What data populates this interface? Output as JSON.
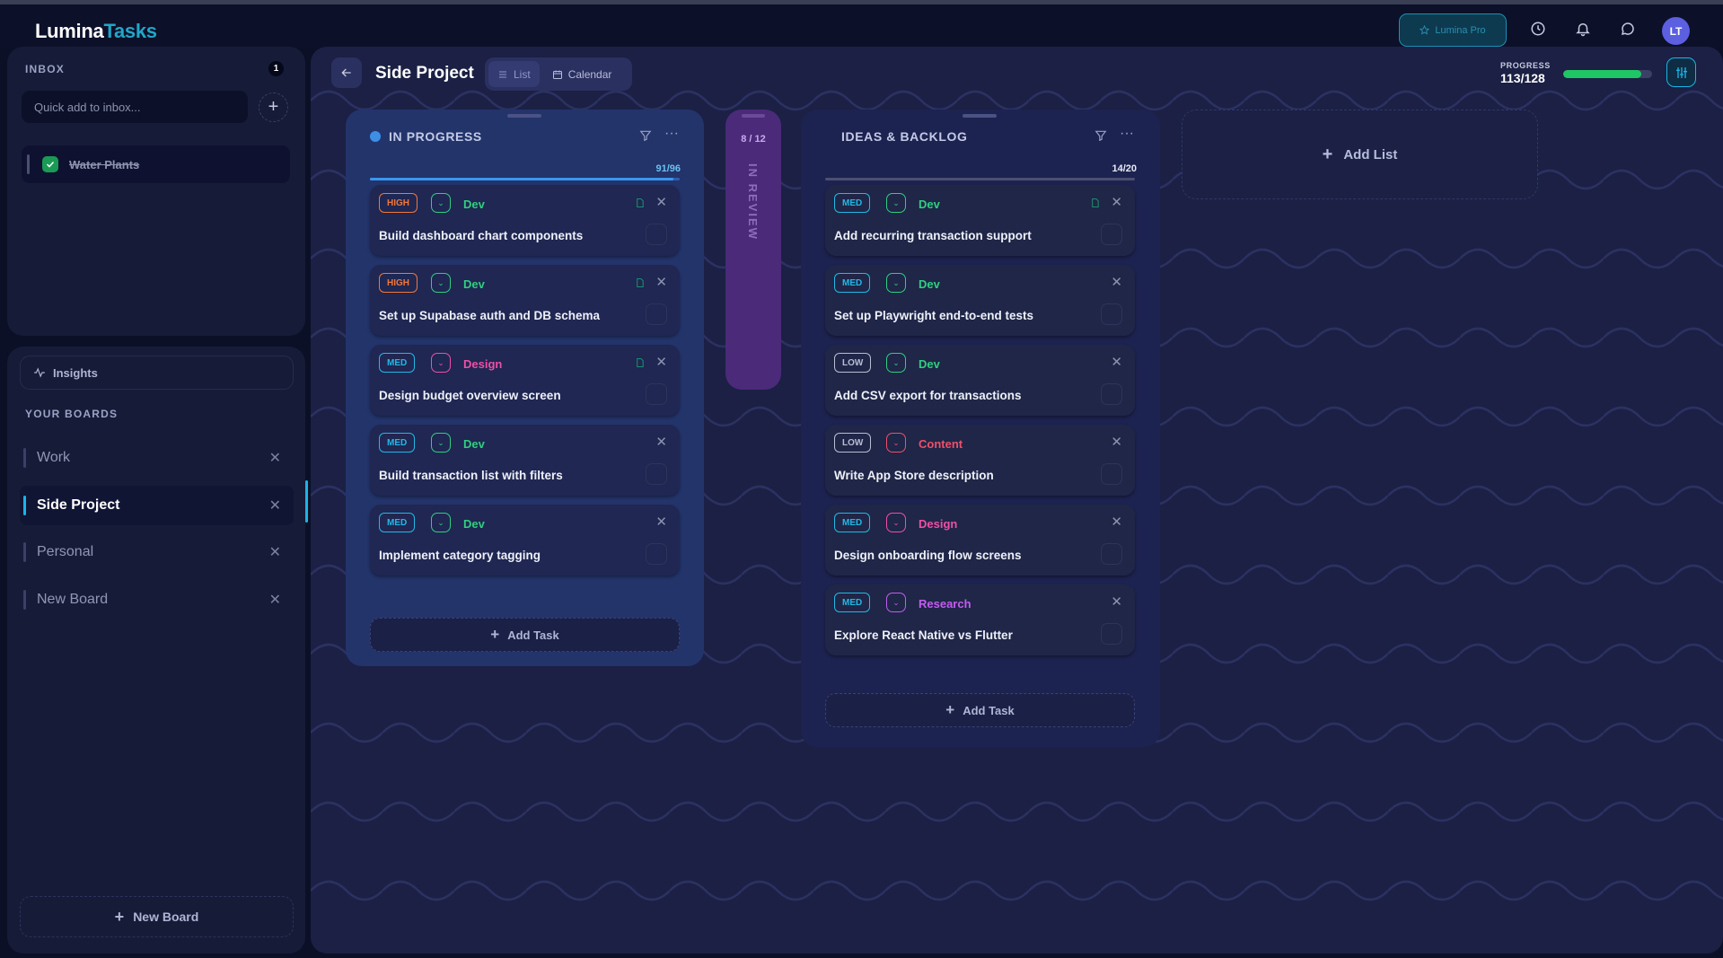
{
  "app": {
    "logo_a": "Lumina",
    "logo_b": "Tasks",
    "pro_label": "Lumina Pro",
    "avatar": "LT"
  },
  "inbox": {
    "title": "INBOX",
    "count": "1",
    "placeholder": "Quick add to inbox...",
    "items": [
      {
        "label": "Water Plants",
        "done": true
      }
    ]
  },
  "sidebar": {
    "insights": "Insights",
    "boards_title": "YOUR BOARDS",
    "boards": [
      {
        "label": "Work"
      },
      {
        "label": "Side Project",
        "active": true
      },
      {
        "label": "Personal"
      },
      {
        "label": "New Board"
      }
    ],
    "new_board": "New Board"
  },
  "board": {
    "title": "Side Project",
    "tabs": [
      "List",
      "Calendar"
    ],
    "progress_label": "PROGRESS",
    "progress_value": "113/128",
    "progress_fraction": 0.883
  },
  "colors": {
    "accent": "#19b5e6",
    "high": "#f0773a",
    "med": "#22b8e6",
    "low": "#b9bed3",
    "dev": "#2fcf7f",
    "design": "#ef4fa6",
    "content": "#ef4f6a",
    "research": "#c45cf0",
    "progress": "#1fc664"
  },
  "columns": {
    "in_progress": {
      "title": "IN PROGRESS",
      "count": "91/96",
      "cards": [
        {
          "priority": "HIGH",
          "category": "Dev",
          "title": "Build dashboard chart components"
        },
        {
          "priority": "HIGH",
          "category": "Dev",
          "title": "Set up Supabase auth and DB schema"
        },
        {
          "priority": "MED",
          "category": "Design",
          "title": "Design budget overview screen"
        },
        {
          "priority": "MED",
          "category": "Dev",
          "title": "Build transaction list with filters"
        },
        {
          "priority": "MED",
          "category": "Dev",
          "title": "Implement category tagging"
        }
      ],
      "add_task": "Add Task"
    },
    "in_review": {
      "title": "IN REVIEW",
      "count": "8 / 12"
    },
    "ideas": {
      "title": "IDEAS & BACKLOG",
      "count": "14/20",
      "cards": [
        {
          "priority": "MED",
          "category": "Dev",
          "title": "Add recurring transaction support"
        },
        {
          "priority": "MED",
          "category": "Dev",
          "title": "Set up Playwright end-to-end tests"
        },
        {
          "priority": "LOW",
          "category": "Dev",
          "title": "Add CSV export for transactions"
        },
        {
          "priority": "LOW",
          "category": "Content",
          "title": "Write App Store description"
        },
        {
          "priority": "MED",
          "category": "Design",
          "title": "Design onboarding flow screens"
        },
        {
          "priority": "MED",
          "category": "Research",
          "title": "Explore React Native vs Flutter"
        }
      ],
      "add_task": "Add Task"
    }
  },
  "add_list": "Add List"
}
